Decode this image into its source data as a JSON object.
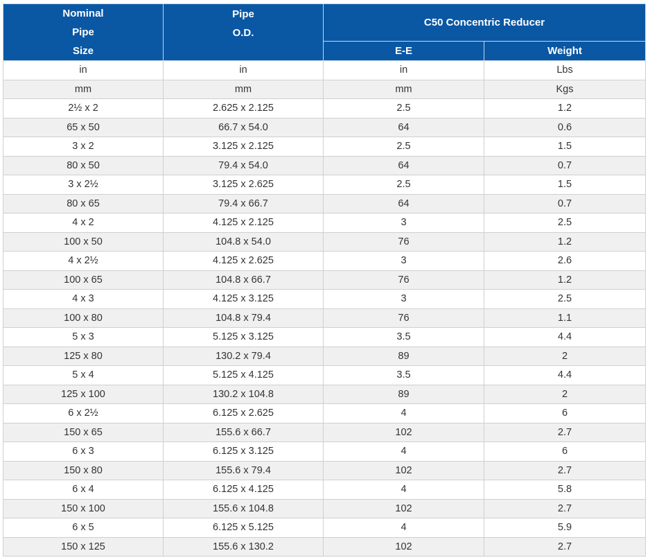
{
  "table": {
    "header": {
      "nominal_pipe_size": [
        "Nominal",
        "Pipe",
        "Size"
      ],
      "pipe_od": [
        "Pipe",
        "O.D."
      ],
      "group": "C50 Concentric Reducer",
      "ee": "E-E",
      "weight": "Weight"
    },
    "rows": [
      [
        "in",
        "in",
        "in",
        "Lbs"
      ],
      [
        "mm",
        "mm",
        "mm",
        "Kgs"
      ],
      [
        "2½ x 2",
        "2.625 x 2.125",
        "2.5",
        "1.2"
      ],
      [
        "65 x 50",
        "66.7 x 54.0",
        "64",
        "0.6"
      ],
      [
        "3 x 2",
        "3.125 x 2.125",
        "2.5",
        "1.5"
      ],
      [
        "80 x 50",
        "79.4 x 54.0",
        "64",
        "0.7"
      ],
      [
        "3 x 2½",
        "3.125 x 2.625",
        "2.5",
        "1.5"
      ],
      [
        "80 x 65",
        "79.4 x 66.7",
        "64",
        "0.7"
      ],
      [
        "4 x 2",
        "4.125 x 2.125",
        "3",
        "2.5"
      ],
      [
        "100 x 50",
        "104.8 x 54.0",
        "76",
        "1.2"
      ],
      [
        "4 x 2½",
        "4.125 x 2.625",
        "3",
        "2.6"
      ],
      [
        "100 x 65",
        "104.8 x 66.7",
        "76",
        "1.2"
      ],
      [
        "4 x 3",
        "4.125 x 3.125",
        "3",
        "2.5"
      ],
      [
        "100 x 80",
        "104.8 x 79.4",
        "76",
        "1.1"
      ],
      [
        "5 x 3",
        "5.125 x 3.125",
        "3.5",
        "4.4"
      ],
      [
        "125 x 80",
        "130.2 x 79.4",
        "89",
        "2"
      ],
      [
        "5 x 4",
        "5.125 x 4.125",
        "3.5",
        "4.4"
      ],
      [
        "125 x 100",
        "130.2 x 104.8",
        "89",
        "2"
      ],
      [
        "6 x 2½",
        "6.125 x 2.625",
        "4",
        "6"
      ],
      [
        "150 x 65",
        "155.6 x 66.7",
        "102",
        "2.7"
      ],
      [
        "6 x 3",
        "6.125 x 3.125",
        "4",
        "6"
      ],
      [
        "150 x 80",
        "155.6 x 79.4",
        "102",
        "2.7"
      ],
      [
        "6 x 4",
        "6.125 x 4.125",
        "4",
        "5.8"
      ],
      [
        "150 x 100",
        "155.6 x 104.8",
        "102",
        "2.7"
      ],
      [
        "6 x 5",
        "6.125 x 5.125",
        "4",
        "5.9"
      ],
      [
        "150 x 125",
        "155.6 x 130.2",
        "102",
        "2.7"
      ]
    ]
  }
}
